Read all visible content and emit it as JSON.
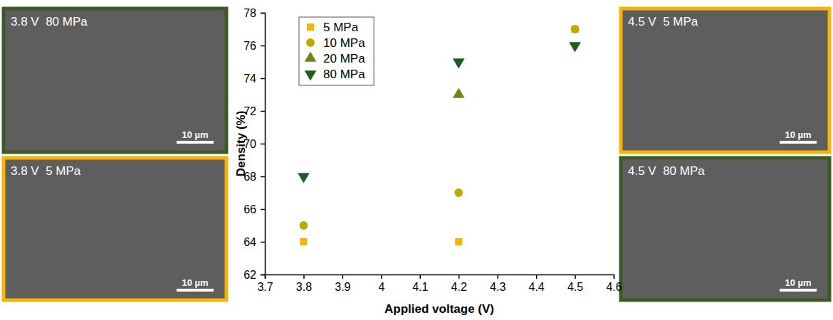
{
  "chart_data": {
    "type": "scatter",
    "x_label": "Applied voltage (V)",
    "y_label": "Density (%)",
    "xlim": [
      3.7,
      4.6
    ],
    "xticks": [
      3.7,
      3.8,
      3.9,
      4.0,
      4.1,
      4.2,
      4.3,
      4.4,
      4.5,
      4.6
    ],
    "ylim": [
      62,
      78
    ],
    "yticks": [
      62,
      64,
      66,
      68,
      70,
      72,
      74,
      76,
      78
    ],
    "legend": "upper-left",
    "grid": false,
    "series": [
      {
        "name": "5 MPa",
        "color": "#f5b400",
        "marker": "square",
        "x": [
          3.8,
          4.2,
          4.5
        ],
        "values": [
          64,
          64,
          77
        ]
      },
      {
        "name": "10 MPa",
        "color": "#bdaa00",
        "marker": "circle",
        "x": [
          3.8,
          4.2,
          4.5
        ],
        "values": [
          65,
          67,
          77
        ]
      },
      {
        "name": "20 MPa",
        "color": "#6e8420",
        "marker": "triangle-up",
        "x": [
          4.2
        ],
        "values": [
          73
        ]
      },
      {
        "name": "80 MPa",
        "color": "#1f5c1f",
        "marker": "triangle-down",
        "x": [
          3.8,
          4.2,
          4.5
        ],
        "values": [
          68,
          75,
          76
        ]
      }
    ]
  },
  "images": [
    {
      "label": "3.8 V  80 MPa",
      "scale_bar": "10 µm",
      "color": "#3d5a26"
    },
    {
      "label": "3.8 V  5 MPa",
      "scale_bar": "10 µm",
      "color": "#f5b400"
    },
    {
      "label": "4.5 V  5 MPa",
      "scale_bar": "10 µm",
      "color": "#f5b400"
    },
    {
      "label": "4.5 V  80 MPa",
      "scale_bar": "10 µm",
      "color": "#3d5a26"
    }
  ]
}
